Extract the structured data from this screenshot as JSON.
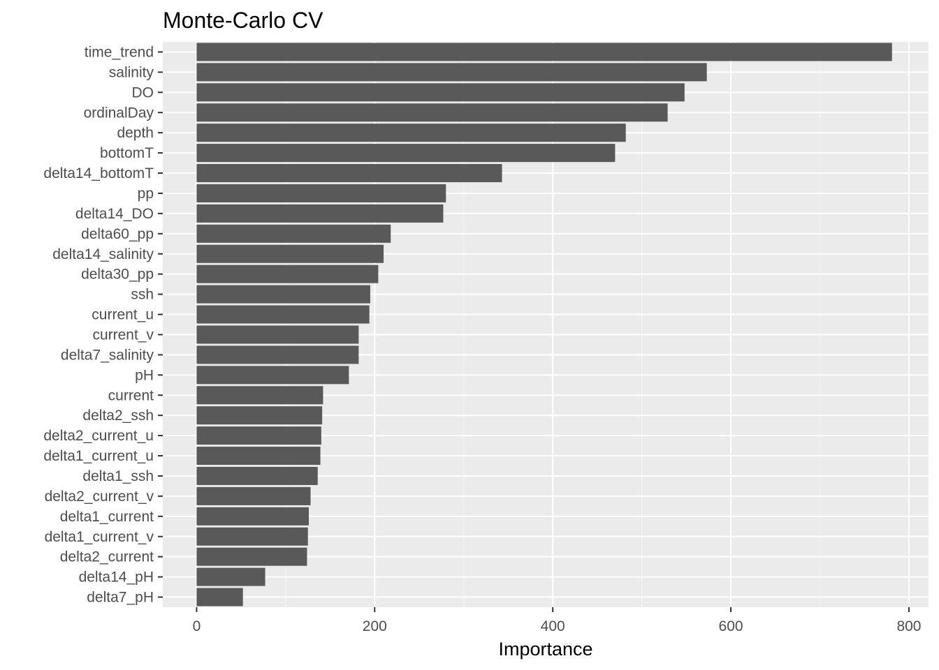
{
  "chart_data": {
    "type": "bar",
    "orientation": "horizontal",
    "title": "Monte-Carlo CV",
    "xlabel": "Importance",
    "ylabel": "",
    "xlim": [
      -38,
      822
    ],
    "x_ticks": [
      0,
      200,
      400,
      600,
      800
    ],
    "grid": true,
    "legend": "none",
    "colors": {
      "panel_background": "#EBEBEB",
      "grid_major": "#FFFFFF",
      "grid_minor": "#F5F5F5",
      "bar_fill": "#595959",
      "tick_text": "#4D4D4D",
      "title_text": "#000000"
    },
    "categories": [
      "time_trend",
      "salinity",
      "DO",
      "ordinalDay",
      "depth",
      "bottomT",
      "delta14_bottomT",
      "pp",
      "delta14_DO",
      "delta60_pp",
      "delta14_salinity",
      "delta30_pp",
      "ssh",
      "current_u",
      "current_v",
      "delta7_salinity",
      "pH",
      "current",
      "delta2_ssh",
      "delta2_current_u",
      "delta1_current_u",
      "delta1_ssh",
      "delta2_current_v",
      "delta1_current",
      "delta1_current_v",
      "delta2_current",
      "delta14_pH",
      "delta7_pH"
    ],
    "values": [
      781,
      573,
      548,
      529,
      482,
      470,
      343,
      280,
      277,
      218,
      210,
      204,
      195,
      194,
      182,
      182,
      171,
      142,
      141,
      140,
      139,
      136,
      128,
      126,
      125,
      124,
      77,
      52
    ]
  }
}
